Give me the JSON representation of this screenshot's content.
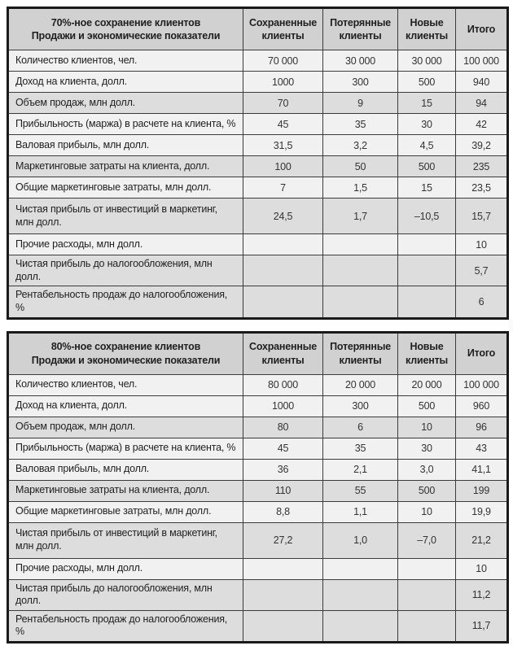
{
  "colors": {
    "header-bg": "#d1d1d1",
    "row-light": "#f1f1f1",
    "row-dark": "#dddddd",
    "border": "#3b3b3b",
    "frame": "#1a1a1a",
    "text": "#1f1f1f"
  },
  "tables": [
    {
      "title_line1": "70%-ное сохранение клиентов",
      "title_line2": "Продажи и экономические показатели",
      "columns": [
        "Сохраненные клиенты",
        "Потерянные клиенты",
        "Новые клиенты",
        "Итого"
      ],
      "rows": [
        {
          "label": "Количество клиентов, чел.",
          "values": [
            "70 000",
            "30 000",
            "30 000",
            "100 000"
          ],
          "shade": false,
          "tall": false
        },
        {
          "label": "Доход на клиента, долл.",
          "values": [
            "1000",
            "300",
            "500",
            "940"
          ],
          "shade": false,
          "tall": false
        },
        {
          "label": "Объем продаж, млн долл.",
          "values": [
            "70",
            "9",
            "15",
            "94"
          ],
          "shade": true,
          "tall": false
        },
        {
          "label": "Прибыльность (маржа) в расчете на клиента, %",
          "values": [
            "45",
            "35",
            "30",
            "42"
          ],
          "shade": false,
          "tall": false
        },
        {
          "label": "Валовая прибыль, млн долл.",
          "values": [
            "31,5",
            "3,2",
            "4,5",
            "39,2"
          ],
          "shade": false,
          "tall": false
        },
        {
          "label": "Маркетинговые затраты на клиента, долл.",
          "values": [
            "100",
            "50",
            "500",
            "235"
          ],
          "shade": true,
          "tall": false
        },
        {
          "label": "Общие маркетинговые затраты, млн долл.",
          "values": [
            "7",
            "1,5",
            "15",
            "23,5"
          ],
          "shade": false,
          "tall": false
        },
        {
          "label": "Чистая прибыль от инвестиций в маркетинг, млн долл.",
          "values": [
            "24,5",
            "1,7",
            "–10,5",
            "15,7"
          ],
          "shade": true,
          "tall": true
        },
        {
          "label": "Прочие расходы, млн долл.",
          "values": [
            "",
            "",
            "",
            "10"
          ],
          "shade": false,
          "tall": false
        },
        {
          "label": "Чистая прибыль до налогообложения, млн долл.",
          "values": [
            "",
            "",
            "",
            "5,7"
          ],
          "shade": true,
          "tall": false
        },
        {
          "label": "Рентабельность продаж до налогообложения, %",
          "values": [
            "",
            "",
            "",
            "6"
          ],
          "shade": true,
          "tall": false
        }
      ]
    },
    {
      "title_line1": "80%-ное сохранение клиентов",
      "title_line2": "Продажи и экономические показатели",
      "columns": [
        "Сохраненные клиенты",
        "Потерянные клиенты",
        "Новые клиенты",
        "Итого"
      ],
      "rows": [
        {
          "label": "Количество клиентов, чел.",
          "values": [
            "80 000",
            "20 000",
            "20 000",
            "100 000"
          ],
          "shade": false,
          "tall": false
        },
        {
          "label": "Доход на клиента, долл.",
          "values": [
            "1000",
            "300",
            "500",
            "960"
          ],
          "shade": false,
          "tall": false
        },
        {
          "label": "Объем продаж, млн долл.",
          "values": [
            "80",
            "6",
            "10",
            "96"
          ],
          "shade": true,
          "tall": false
        },
        {
          "label": "Прибыльность (маржа) в расчете на клиента, %",
          "values": [
            "45",
            "35",
            "30",
            "43"
          ],
          "shade": false,
          "tall": false
        },
        {
          "label": "Валовая прибыль, млн долл.",
          "values": [
            "36",
            "2,1",
            "3,0",
            "41,1"
          ],
          "shade": false,
          "tall": false
        },
        {
          "label": "Маркетинговые затраты на клиента, долл.",
          "values": [
            "110",
            "55",
            "500",
            "199"
          ],
          "shade": true,
          "tall": false
        },
        {
          "label": "Общие маркетинговые затраты, млн долл.",
          "values": [
            "8,8",
            "1,1",
            "10",
            "19,9"
          ],
          "shade": false,
          "tall": false
        },
        {
          "label": "Чистая прибыль от инвестиций в маркетинг, млн долл.",
          "values": [
            "27,2",
            "1,0",
            "–7,0",
            "21,2"
          ],
          "shade": true,
          "tall": true
        },
        {
          "label": "Прочие расходы, млн долл.",
          "values": [
            "",
            "",
            "",
            "10"
          ],
          "shade": false,
          "tall": false
        },
        {
          "label": "Чистая прибыль до налогообложения, млн долл.",
          "values": [
            "",
            "",
            "",
            "11,2"
          ],
          "shade": true,
          "tall": false
        },
        {
          "label": "Рентабельность продаж до налогообложения, %",
          "values": [
            "",
            "",
            "",
            "11,7"
          ],
          "shade": true,
          "tall": false
        }
      ]
    }
  ]
}
